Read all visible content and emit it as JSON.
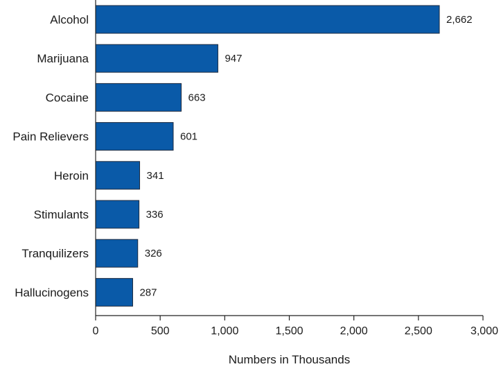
{
  "chart_data": {
    "type": "bar",
    "orientation": "horizontal",
    "categories": [
      "Alcohol",
      "Marijuana",
      "Cocaine",
      "Pain Relievers",
      "Heroin",
      "Stimulants",
      "Tranquilizers",
      "Hallucinogens"
    ],
    "values": [
      2662,
      947,
      663,
      601,
      341,
      336,
      326,
      287
    ],
    "value_labels": [
      "2,662",
      "947",
      "663",
      "601",
      "341",
      "336",
      "326",
      "287"
    ],
    "title": "",
    "xlabel": "Numbers in Thousands",
    "ylabel": "",
    "xlim": [
      0,
      3000
    ],
    "x_ticks": [
      0,
      500,
      1000,
      1500,
      2000,
      2500,
      3000
    ],
    "x_tick_labels": [
      "0",
      "500",
      "1,000",
      "1,500",
      "2,000",
      "2,500",
      "3,000"
    ],
    "grid": false,
    "legend": "none",
    "colors": {
      "bar": "#0a5aa8"
    }
  }
}
